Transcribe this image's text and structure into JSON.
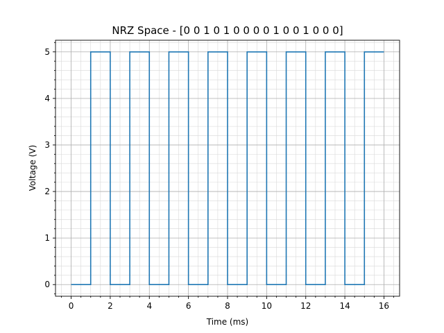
{
  "chart_data": {
    "type": "line",
    "step": "post",
    "title": "NRZ Space - [0 0 1 0 1 0 0 0 0 1 0 0 1 0 0 0]",
    "xlabel": "Time (ms)",
    "ylabel": "Voltage (V)",
    "xlim": [
      -0.8,
      16.8
    ],
    "ylim": [
      -0.25,
      5.25
    ],
    "xticks": [
      0,
      2,
      4,
      6,
      8,
      10,
      12,
      14,
      16
    ],
    "yticks": [
      0,
      1,
      2,
      3,
      4,
      5
    ],
    "grid": true,
    "minor_grid": true,
    "series": [
      {
        "color": "#1f77b4",
        "x": [
          0,
          1,
          2,
          3,
          4,
          5,
          6,
          7,
          8,
          9,
          10,
          11,
          12,
          13,
          14,
          15,
          16
        ],
        "y": [
          0,
          5,
          0,
          5,
          0,
          5,
          0,
          5,
          0,
          5,
          0,
          5,
          0,
          5,
          0,
          5,
          5
        ]
      }
    ]
  }
}
